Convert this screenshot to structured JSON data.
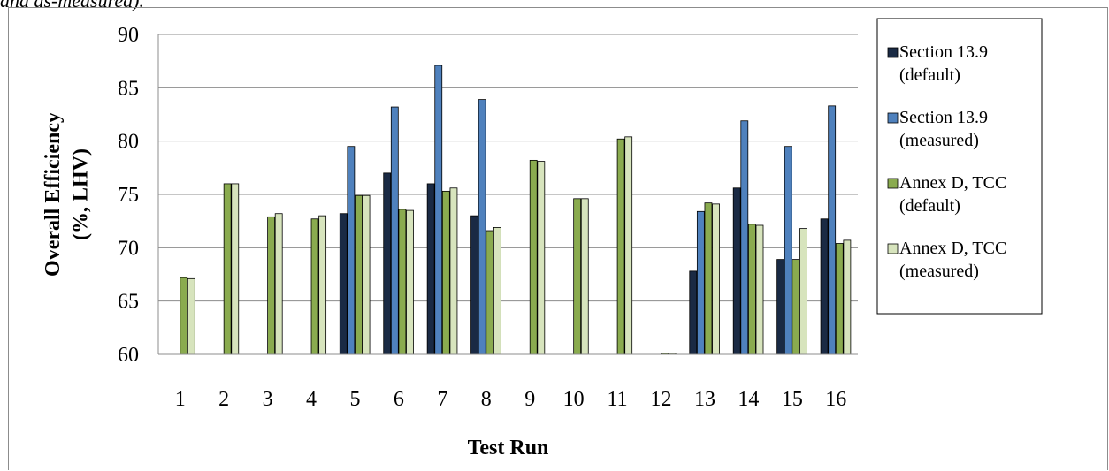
{
  "caption_fragment": "and as-measured).",
  "chart_data": {
    "type": "bar",
    "title": "",
    "xlabel": "Test Run",
    "ylabel": "Overall Efficiency (%, LHV)",
    "ylabel_lines": [
      "Overall Efficiency",
      "(%, LHV)"
    ],
    "ylim": [
      60,
      90
    ],
    "yticks": [
      60,
      65,
      70,
      75,
      80,
      85,
      90
    ],
    "grid": true,
    "legend_position": "right",
    "categories": [
      "1",
      "2",
      "3",
      "4",
      "5",
      "6",
      "7",
      "8",
      "9",
      "10",
      "11",
      "12",
      "13",
      "14",
      "15",
      "16"
    ],
    "series": [
      {
        "name": "Section 13.9 (default)",
        "label_lines": [
          "Section 13.9",
          "(default)"
        ],
        "color": "#1a2a44",
        "values": [
          null,
          null,
          null,
          null,
          73.2,
          77.0,
          76.0,
          73.0,
          null,
          null,
          null,
          null,
          67.8,
          75.6,
          68.9,
          72.7
        ]
      },
      {
        "name": "Section 13.9 (measured)",
        "label_lines": [
          "Section 13.9",
          "(measured)"
        ],
        "color": "#4f81bd",
        "values": [
          null,
          null,
          null,
          null,
          79.5,
          83.2,
          87.1,
          83.9,
          null,
          null,
          null,
          null,
          73.4,
          81.9,
          79.5,
          83.3
        ]
      },
      {
        "name": "Annex D, TCC (default)",
        "label_lines": [
          "Annex D, TCC",
          "(default)"
        ],
        "color": "#8aab4f",
        "values": [
          67.2,
          76.0,
          72.9,
          72.7,
          74.9,
          73.6,
          75.3,
          71.6,
          78.2,
          74.6,
          80.2,
          60.1,
          74.2,
          72.2,
          68.9,
          70.4
        ]
      },
      {
        "name": "Annex D, TCC (measured)",
        "label_lines": [
          "Annex D, TCC",
          "(measured)"
        ],
        "color": "#d7e4bd",
        "values": [
          67.1,
          76.0,
          73.2,
          73.0,
          74.9,
          73.5,
          75.6,
          71.9,
          78.1,
          74.6,
          80.4,
          60.1,
          74.1,
          72.1,
          71.8,
          70.7
        ]
      }
    ]
  }
}
